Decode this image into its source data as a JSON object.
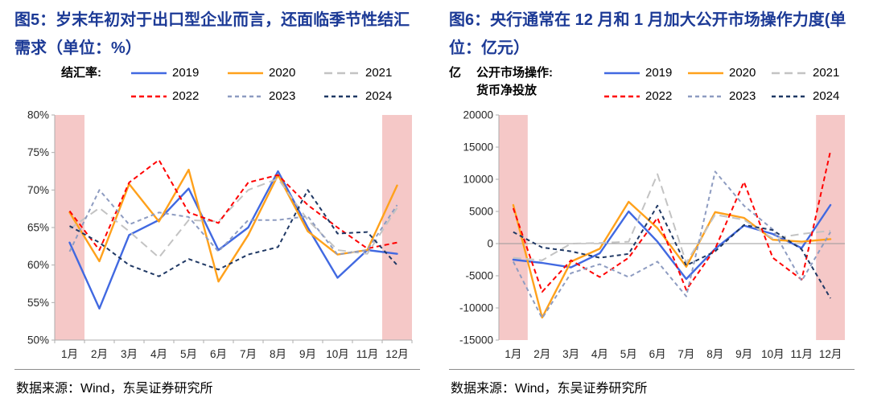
{
  "panels": [
    {
      "source": "数据来源：Wind，东吴证券研究所"
    },
    {
      "source": "数据来源：Wind，东吴证券研究所"
    }
  ],
  "colors": {
    "title": "#1C3A96",
    "highlight_band": "#F5C8C7",
    "axis": "#ADADAD",
    "zero_line": "#999999"
  },
  "chart_data": [
    {
      "type": "line",
      "title": "图5：岁末年初对于出口型企业而言，还面临季节性结汇需求（单位：%）",
      "legend_label": "结汇率:",
      "legend_position": "top",
      "xlabel": "",
      "ylabel": "结汇率 (%)",
      "x_labels": [
        "1月",
        "2月",
        "3月",
        "4月",
        "5月",
        "6月",
        "7月",
        "8月",
        "9月",
        "10月",
        "11月",
        "12月"
      ],
      "ylim": [
        50,
        80
      ],
      "yticks": [
        80,
        75,
        70,
        65,
        60,
        55,
        50
      ],
      "ytick_suffix": "%",
      "grid": false,
      "bottom_axis": true,
      "zero_line": false,
      "highlight_slots": [
        1,
        12
      ],
      "highlight_color": "#F5C8C7",
      "series": [
        {
          "name": "2019",
          "color": "#4169E1",
          "dash": "",
          "values": [
            63.0,
            54.2,
            64.0,
            66.0,
            70.2,
            62.0,
            65.0,
            72.5,
            65.0,
            58.3,
            62.0,
            61.5
          ]
        },
        {
          "name": "2020",
          "color": "#FFA11B",
          "dash": "",
          "values": [
            67.0,
            60.5,
            70.8,
            65.8,
            72.7,
            57.8,
            64.0,
            72.0,
            64.5,
            61.4,
            62.0,
            70.6
          ]
        },
        {
          "name": "2021",
          "color": "#C3C3C3",
          "dash": "10 6",
          "values": [
            64.8,
            67.6,
            64.5,
            61.0,
            66.0,
            65.8,
            70.0,
            71.5,
            66.0,
            62.0,
            61.5,
            67.6
          ]
        },
        {
          "name": "2022",
          "color": "#FF0000",
          "dash": "6 4",
          "values": [
            67.2,
            62.0,
            71.0,
            74.0,
            67.0,
            65.6,
            71.0,
            72.0,
            68.0,
            65.0,
            62.2,
            63.0
          ]
        },
        {
          "name": "2023",
          "color": "#8E9CC1",
          "dash": "5 4",
          "values": [
            61.8,
            70.0,
            65.4,
            67.0,
            66.4,
            61.8,
            66.0,
            66.0,
            66.5,
            61.4,
            62.0,
            68.0
          ]
        },
        {
          "name": "2024",
          "color": "#1F3864",
          "dash": "5 4",
          "values": [
            65.2,
            63.0,
            60.0,
            58.5,
            60.8,
            59.4,
            61.4,
            62.4,
            70.0,
            64.2,
            64.4,
            60.0
          ]
        }
      ]
    },
    {
      "type": "line",
      "title": "图6：央行通常在 12 月和 1 月加大公开市场操作力度(单位：亿元）",
      "legend_label": "公开市场操作:",
      "legend_label2": "货币净投放",
      "unit_label": "亿",
      "legend_position": "top",
      "xlabel": "",
      "ylabel": "公开市场操作：货币净投放 (亿元)",
      "x_labels": [
        "1月",
        "2月",
        "3月",
        "4月",
        "5月",
        "6月",
        "7月",
        "8月",
        "9月",
        "10月",
        "11月",
        "12月"
      ],
      "ylim": [
        -15000,
        20000
      ],
      "yticks": [
        20000,
        15000,
        10000,
        5000,
        0,
        -5000,
        -10000,
        -15000
      ],
      "ytick_suffix": "",
      "grid": false,
      "bottom_axis": false,
      "zero_line": true,
      "highlight_slots": [
        1,
        12
      ],
      "highlight_color": "#F5C8C7",
      "series": [
        {
          "name": "2019",
          "color": "#4169E1",
          "dash": "",
          "values": [
            -2500,
            -3000,
            -3700,
            -1500,
            5000,
            300,
            -5500,
            -800,
            2800,
            1500,
            -700,
            6000
          ]
        },
        {
          "name": "2020",
          "color": "#FFA11B",
          "dash": "",
          "values": [
            6000,
            -11500,
            -2800,
            -800,
            6500,
            2400,
            -3600,
            4900,
            4000,
            600,
            300,
            700
          ]
        },
        {
          "name": "2021",
          "color": "#C3C3C3",
          "dash": "10 6",
          "values": [
            -2200,
            -2600,
            0,
            100,
            300,
            10800,
            -3000,
            4500,
            3700,
            800,
            1500,
            2000
          ]
        },
        {
          "name": "2022",
          "color": "#FF0000",
          "dash": "6 4",
          "values": [
            5500,
            -7500,
            -2600,
            -5200,
            -2200,
            4000,
            -7200,
            -800,
            9600,
            -2200,
            -5600,
            14400
          ]
        },
        {
          "name": "2023",
          "color": "#8E9CC1",
          "dash": "5 4",
          "values": [
            -2800,
            -11600,
            -4600,
            -3200,
            -5200,
            -2800,
            -8200,
            11200,
            5900,
            2200,
            -5800,
            1800
          ]
        },
        {
          "name": "2024",
          "color": "#1F3864",
          "dash": "5 4",
          "values": [
            1800,
            -600,
            -1200,
            -2200,
            -1600,
            5900,
            -3400,
            -1200,
            2900,
            2100,
            -900,
            -8500
          ]
        }
      ]
    }
  ]
}
